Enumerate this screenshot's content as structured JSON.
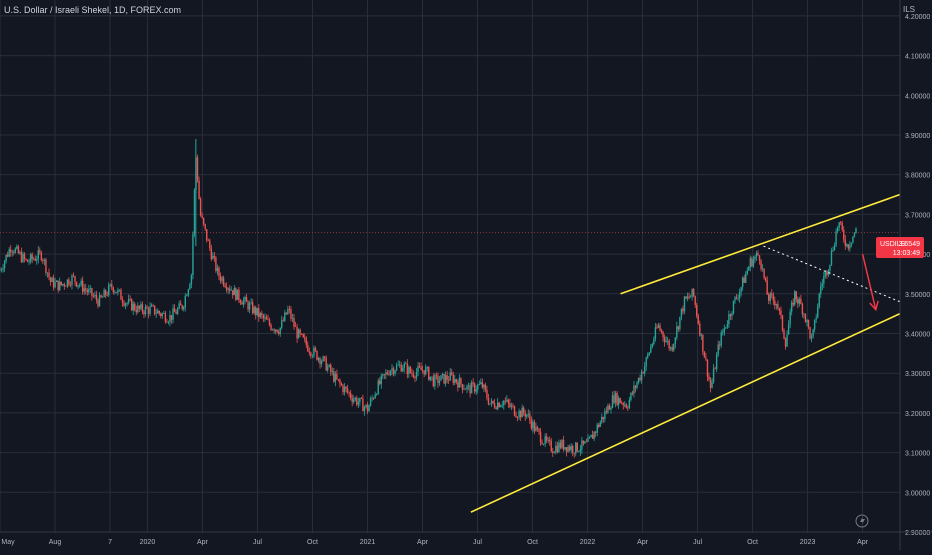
{
  "title": "U.S. Dollar / Israeli Shekel, 1D, FOREX.com",
  "currency": "ILS",
  "price_label": {
    "symbol": "USDILS",
    "price": "3.6549",
    "countdown": "13:03:49"
  },
  "colors": {
    "background": "#131722",
    "up": "#26a69a",
    "down": "#ef5350",
    "channel": "#ffeb3b",
    "arrow": "#f23645",
    "grid": "#2a2e39",
    "axis_text": "#b2b5be"
  },
  "icon": "lightning-icon",
  "chart_data": {
    "type": "candlestick",
    "x_ticks": [
      "May",
      "Aug",
      "7",
      "2020",
      "Apr",
      "Jul",
      "Oct",
      "2021",
      "Apr",
      "Jul",
      "Oct",
      "2022",
      "Apr",
      "Jul",
      "Oct",
      "2023",
      "Apr"
    ],
    "y_ticks": [
      "2.90000",
      "3.00000",
      "3.10000",
      "3.20000",
      "3.30000",
      "3.40000",
      "3.50000",
      "3.60000",
      "3.70000",
      "3.80000",
      "3.90000",
      "4.00000",
      "4.10000",
      "4.20000"
    ],
    "ylim": [
      2.9,
      4.24
    ],
    "xlim": [
      2019.33,
      2023.42
    ],
    "current_price": 3.6549,
    "price_path": [
      [
        2019.33,
        3.56
      ],
      [
        2019.38,
        3.62
      ],
      [
        2019.45,
        3.58
      ],
      [
        2019.52,
        3.6
      ],
      [
        2019.56,
        3.53
      ],
      [
        2019.6,
        3.52
      ],
      [
        2019.66,
        3.54
      ],
      [
        2019.72,
        3.51
      ],
      [
        2019.78,
        3.48
      ],
      [
        2019.84,
        3.52
      ],
      [
        2019.9,
        3.48
      ],
      [
        2019.96,
        3.46
      ],
      [
        2020.02,
        3.46
      ],
      [
        2020.1,
        3.44
      ],
      [
        2020.16,
        3.47
      ],
      [
        2020.2,
        3.55
      ],
      [
        2020.22,
        3.85
      ],
      [
        2020.24,
        3.7
      ],
      [
        2020.28,
        3.62
      ],
      [
        2020.32,
        3.55
      ],
      [
        2020.4,
        3.5
      ],
      [
        2020.48,
        3.46
      ],
      [
        2020.56,
        3.42
      ],
      [
        2020.6,
        3.41
      ],
      [
        2020.64,
        3.46
      ],
      [
        2020.68,
        3.4
      ],
      [
        2020.74,
        3.36
      ],
      [
        2020.8,
        3.33
      ],
      [
        2020.86,
        3.28
      ],
      [
        2020.93,
        3.24
      ],
      [
        2021.0,
        3.21
      ],
      [
        2021.04,
        3.26
      ],
      [
        2021.1,
        3.31
      ],
      [
        2021.16,
        3.32
      ],
      [
        2021.2,
        3.3
      ],
      [
        2021.26,
        3.31
      ],
      [
        2021.3,
        3.28
      ],
      [
        2021.38,
        3.29
      ],
      [
        2021.46,
        3.26
      ],
      [
        2021.52,
        3.27
      ],
      [
        2021.56,
        3.22
      ],
      [
        2021.62,
        3.23
      ],
      [
        2021.68,
        3.2
      ],
      [
        2021.72,
        3.2
      ],
      [
        2021.76,
        3.16
      ],
      [
        2021.8,
        3.13
      ],
      [
        2021.84,
        3.11
      ],
      [
        2021.88,
        3.12
      ],
      [
        2021.94,
        3.11
      ],
      [
        2022.0,
        3.12
      ],
      [
        2022.06,
        3.18
      ],
      [
        2022.12,
        3.24
      ],
      [
        2022.18,
        3.22
      ],
      [
        2022.26,
        3.32
      ],
      [
        2022.32,
        3.42
      ],
      [
        2022.38,
        3.36
      ],
      [
        2022.44,
        3.48
      ],
      [
        2022.48,
        3.5
      ],
      [
        2022.52,
        3.38
      ],
      [
        2022.56,
        3.26
      ],
      [
        2022.6,
        3.38
      ],
      [
        2022.66,
        3.47
      ],
      [
        2022.7,
        3.52
      ],
      [
        2022.74,
        3.58
      ],
      [
        2022.78,
        3.6
      ],
      [
        2022.82,
        3.49
      ],
      [
        2022.86,
        3.48
      ],
      [
        2022.9,
        3.38
      ],
      [
        2022.94,
        3.5
      ],
      [
        2022.98,
        3.46
      ],
      [
        2023.02,
        3.38
      ],
      [
        2023.06,
        3.52
      ],
      [
        2023.1,
        3.58
      ],
      [
        2023.14,
        3.68
      ],
      [
        2023.18,
        3.62
      ],
      [
        2023.22,
        3.66
      ]
    ],
    "annotations": [
      {
        "kind": "upper-channel-line",
        "from": [
          2022.15,
          3.5
        ],
        "to": [
          2023.42,
          3.75
        ]
      },
      {
        "kind": "lower-channel-line",
        "from": [
          2021.47,
          2.95
        ],
        "to": [
          2023.42,
          3.45
        ]
      },
      {
        "kind": "dotted-trend-line",
        "from": [
          2022.8,
          3.62
        ],
        "to": [
          2023.42,
          3.48
        ]
      },
      {
        "kind": "arrow",
        "from": [
          2023.25,
          3.6
        ],
        "to": [
          2023.31,
          3.46
        ]
      }
    ]
  }
}
